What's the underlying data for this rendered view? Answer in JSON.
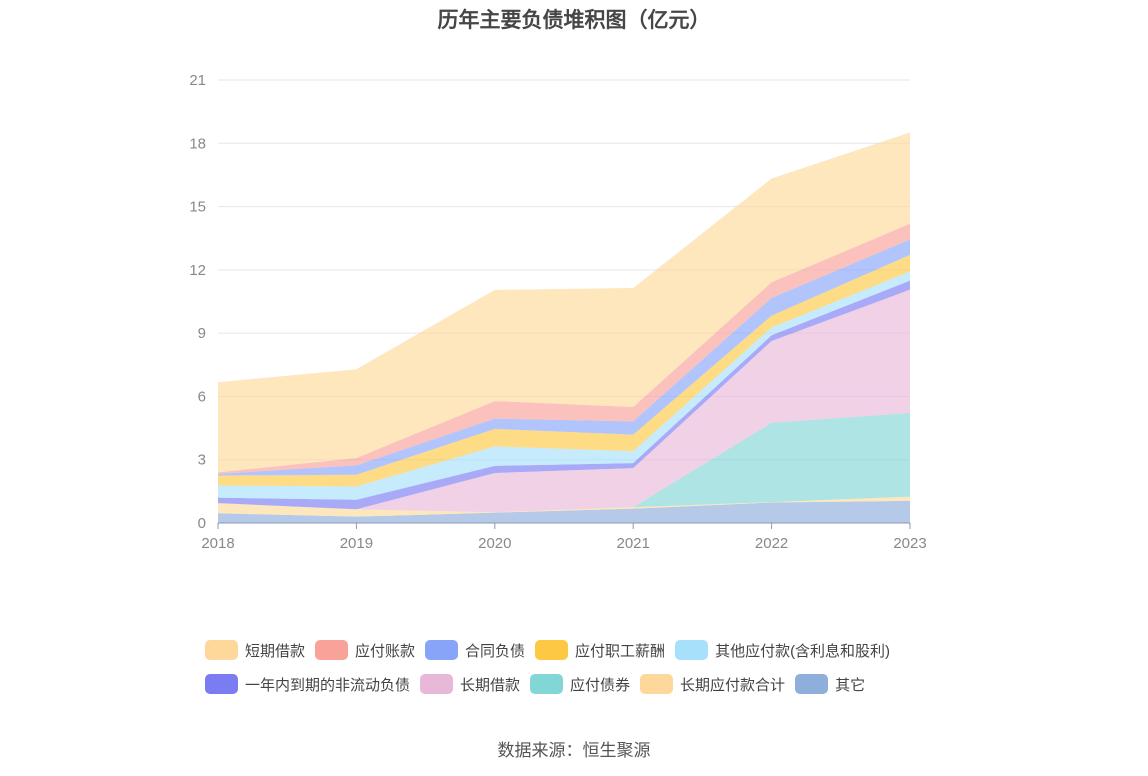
{
  "chart_data": {
    "type": "area",
    "stacked": true,
    "title": "历年主要负债堆积图（亿元）",
    "xlabel": "",
    "ylabel": "",
    "ylim": [
      0,
      21
    ],
    "yticks": [
      0,
      3,
      6,
      9,
      12,
      15,
      18,
      21
    ],
    "grid": true,
    "legend_position": "bottom",
    "x": [
      "2018",
      "2019",
      "2020",
      "2021",
      "2022",
      "2023"
    ],
    "series": [
      {
        "name": "其它",
        "color": "#8eaedb",
        "values": [
          0.46,
          0.3,
          0.49,
          0.68,
          0.97,
          1.05
        ]
      },
      {
        "name": "长期应付款合计",
        "color": "#fdd89a",
        "values": [
          0.48,
          0.35,
          0.02,
          0.07,
          0.02,
          0.2
        ]
      },
      {
        "name": "应付债券",
        "color": "#82d6d6",
        "values": [
          0,
          0,
          0,
          0,
          3.76,
          3.97
        ]
      },
      {
        "name": "长期借款",
        "color": "#e8b8d8",
        "values": [
          0,
          0,
          1.86,
          1.85,
          3.88,
          5.84
        ]
      },
      {
        "name": "一年内到期的非流动负债",
        "color": "#7b7cf2",
        "values": [
          0.26,
          0.45,
          0.34,
          0.24,
          0.27,
          0.43
        ]
      },
      {
        "name": "其他应付款(含利息和股利)",
        "color": "#a6e0fa",
        "values": [
          0.58,
          0.63,
          0.92,
          0.56,
          0.37,
          0.43
        ]
      },
      {
        "name": "应付职工薪酬",
        "color": "#fdc843",
        "values": [
          0.47,
          0.56,
          0.83,
          0.79,
          0.56,
          0.79
        ]
      },
      {
        "name": "合同负债",
        "color": "#87a4f9",
        "values": [
          0.08,
          0.44,
          0.49,
          0.63,
          0.84,
          0.73
        ]
      },
      {
        "name": "应付账款",
        "color": "#f9a29a",
        "values": [
          0.07,
          0.35,
          0.83,
          0.68,
          0.74,
          0.75
        ]
      },
      {
        "name": "短期借款",
        "color": "#fdd89a",
        "values": [
          4.27,
          4.21,
          5.27,
          5.64,
          4.92,
          4.32
        ]
      }
    ],
    "legend_order": [
      "短期借款",
      "应付账款",
      "合同负债",
      "应付职工薪酬",
      "其他应付款(含利息和股利)",
      "一年内到期的非流动负债",
      "长期借款",
      "应付债券",
      "长期应付款合计",
      "其它"
    ]
  },
  "source": "数据来源：恒生聚源"
}
